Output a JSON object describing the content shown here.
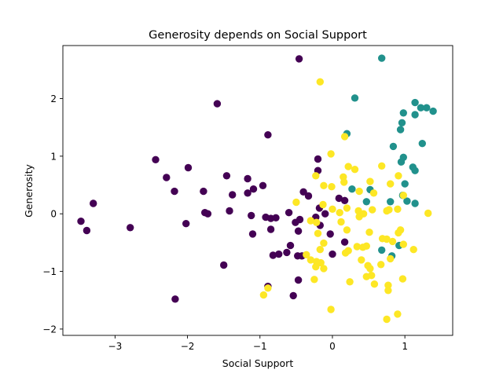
{
  "chart_data": {
    "type": "scatter",
    "title": "Generosity depends on Social Support",
    "xlabel": "Social Support",
    "ylabel": "Generosity",
    "xlim": [
      -3.72,
      1.66
    ],
    "ylim": [
      -2.11,
      2.92
    ],
    "xticks": [
      -3,
      -2,
      -1,
      0,
      1
    ],
    "xtick_labels": [
      "−3",
      "−2",
      "−1",
      "0",
      "1"
    ],
    "yticks": [
      -2,
      -1,
      0,
      1,
      2
    ],
    "ytick_labels": [
      "−2",
      "−1",
      "0",
      "1",
      "2"
    ],
    "grid": false,
    "legend": "none",
    "series": [
      {
        "color": "#440154",
        "points": [
          [
            -0.46,
            2.69
          ],
          [
            -1.59,
            1.91
          ],
          [
            -0.89,
            1.37
          ],
          [
            -2.44,
            0.94
          ],
          [
            -1.99,
            0.8
          ],
          [
            -2.29,
            0.63
          ],
          [
            -1.46,
            0.66
          ],
          [
            -1.17,
            0.61
          ],
          [
            -2.18,
            0.39
          ],
          [
            -1.78,
            0.39
          ],
          [
            -1.09,
            0.43
          ],
          [
            -0.96,
            0.49
          ],
          [
            -1.38,
            0.33
          ],
          [
            -1.17,
            0.36
          ],
          [
            -3.3,
            0.18
          ],
          [
            -1.76,
            0.02
          ],
          [
            -1.72,
            0.0
          ],
          [
            -2.02,
            -0.17
          ],
          [
            -1.42,
            0.05
          ],
          [
            -1.12,
            -0.03
          ],
          [
            -0.92,
            -0.06
          ],
          [
            -0.85,
            -0.08
          ],
          [
            -0.78,
            -0.07
          ],
          [
            -0.6,
            0.02
          ],
          [
            -0.45,
            -0.1
          ],
          [
            -0.51,
            -0.15
          ],
          [
            -3.47,
            -0.13
          ],
          [
            -3.39,
            -0.29
          ],
          [
            -2.79,
            -0.24
          ],
          [
            -0.85,
            -0.27
          ],
          [
            -0.47,
            -0.3
          ],
          [
            -1.1,
            -0.35
          ],
          [
            -0.58,
            -0.55
          ],
          [
            -0.63,
            -0.67
          ],
          [
            -0.74,
            -0.7
          ],
          [
            -0.82,
            -0.72
          ],
          [
            -0.48,
            -0.73
          ],
          [
            -0.42,
            -0.73
          ],
          [
            -1.5,
            -0.89
          ],
          [
            -0.47,
            -1.15
          ],
          [
            -0.89,
            -1.26
          ],
          [
            -0.54,
            -1.42
          ],
          [
            -2.17,
            -1.48
          ],
          [
            -0.2,
            0.95
          ],
          [
            -0.2,
            0.75
          ],
          [
            -0.4,
            0.38
          ],
          [
            -0.33,
            0.31
          ],
          [
            -0.18,
            0.1
          ],
          [
            0.09,
            0.27
          ],
          [
            0.17,
            0.23
          ],
          [
            -0.1,
            0.0
          ],
          [
            -0.23,
            -0.06
          ],
          [
            -0.03,
            -0.35
          ],
          [
            0.17,
            -0.49
          ],
          [
            -0.17,
            -0.2
          ],
          [
            0.0,
            -0.7
          ]
        ]
      },
      {
        "color": "#21918c",
        "points": [
          [
            0.68,
            2.7
          ],
          [
            0.31,
            2.01
          ],
          [
            1.14,
            1.93
          ],
          [
            1.22,
            1.84
          ],
          [
            1.3,
            1.84
          ],
          [
            1.39,
            1.78
          ],
          [
            1.14,
            1.72
          ],
          [
            0.98,
            1.75
          ],
          [
            0.96,
            1.58
          ],
          [
            0.94,
            1.46
          ],
          [
            0.2,
            1.39
          ],
          [
            1.24,
            1.22
          ],
          [
            0.84,
            1.17
          ],
          [
            0.98,
            0.98
          ],
          [
            0.95,
            0.9
          ],
          [
            1.11,
            0.81
          ],
          [
            1.14,
            0.75
          ],
          [
            1.0,
            0.52
          ],
          [
            0.27,
            0.43
          ],
          [
            0.52,
            0.42
          ],
          [
            0.97,
            0.32
          ],
          [
            1.03,
            0.22
          ],
          [
            0.8,
            0.21
          ],
          [
            1.14,
            0.18
          ],
          [
            0.47,
            0.21
          ],
          [
            0.92,
            -0.55
          ],
          [
            0.68,
            -0.63
          ],
          [
            0.82,
            -0.73
          ]
        ]
      },
      {
        "color": "#fde725",
        "points": [
          [
            -0.17,
            2.29
          ],
          [
            0.17,
            1.34
          ],
          [
            -0.02,
            1.04
          ],
          [
            0.22,
            0.82
          ],
          [
            -0.23,
            0.66
          ],
          [
            0.31,
            0.77
          ],
          [
            0.68,
            0.83
          ],
          [
            0.15,
            0.64
          ],
          [
            0.16,
            0.55
          ],
          [
            0.52,
            0.56
          ],
          [
            0.8,
            0.52
          ],
          [
            -0.12,
            0.49
          ],
          [
            -0.01,
            0.47
          ],
          [
            0.37,
            0.39
          ],
          [
            0.57,
            0.36
          ],
          [
            0.91,
            0.66
          ],
          [
            0.98,
            0.32
          ],
          [
            -0.5,
            0.2
          ],
          [
            -0.13,
            0.16
          ],
          [
            0.2,
            0.1
          ],
          [
            0.0,
            0.08
          ],
          [
            0.1,
            0.02
          ],
          [
            0.36,
            0.05
          ],
          [
            0.55,
            0.07
          ],
          [
            0.75,
            0.05
          ],
          [
            0.9,
            0.08
          ],
          [
            1.32,
            0.01
          ],
          [
            -0.3,
            -0.12
          ],
          [
            -0.22,
            -0.15
          ],
          [
            0.43,
            0.0
          ],
          [
            0.37,
            -0.05
          ],
          [
            0.78,
            0.07
          ],
          [
            0.12,
            -0.14
          ],
          [
            0.2,
            -0.28
          ],
          [
            0.51,
            -0.32
          ],
          [
            0.94,
            -0.28
          ],
          [
            0.91,
            -0.33
          ],
          [
            -0.2,
            -0.34
          ],
          [
            0.34,
            -0.57
          ],
          [
            0.47,
            -0.56
          ],
          [
            0.42,
            -0.58
          ],
          [
            0.69,
            -0.43
          ],
          [
            0.75,
            -0.44
          ],
          [
            0.83,
            -0.48
          ],
          [
            0.98,
            -0.53
          ],
          [
            1.12,
            -0.62
          ],
          [
            -0.12,
            -0.51
          ],
          [
            -0.17,
            -0.62
          ],
          [
            0.22,
            -0.64
          ],
          [
            0.18,
            -0.68
          ],
          [
            -0.36,
            -0.71
          ],
          [
            -0.3,
            -0.8
          ],
          [
            -0.22,
            -0.83
          ],
          [
            -0.16,
            -0.85
          ],
          [
            -0.23,
            -0.92
          ],
          [
            -0.12,
            -0.95
          ],
          [
            0.4,
            -0.8
          ],
          [
            0.49,
            -0.9
          ],
          [
            0.52,
            -0.95
          ],
          [
            0.67,
            -0.88
          ],
          [
            0.8,
            -0.78
          ],
          [
            0.47,
            -1.09
          ],
          [
            0.54,
            -1.07
          ],
          [
            0.58,
            -1.22
          ],
          [
            0.77,
            -1.24
          ],
          [
            0.97,
            -1.13
          ],
          [
            -0.25,
            -1.14
          ],
          [
            0.24,
            -1.18
          ],
          [
            0.77,
            -1.33
          ],
          [
            -0.95,
            -1.41
          ],
          [
            -0.89,
            -1.29
          ],
          [
            -0.02,
            -1.66
          ],
          [
            0.9,
            -1.74
          ],
          [
            0.75,
            -1.83
          ]
        ]
      }
    ]
  }
}
